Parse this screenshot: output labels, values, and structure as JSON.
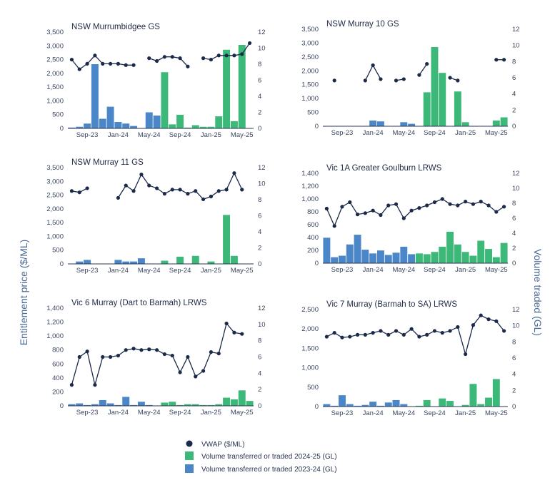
{
  "left_axis_label": "Entitlement price ($/ML)",
  "right_axis_label": "Volume traded (GL)",
  "colors": {
    "vwap": "#1b2a4a",
    "v2425": "#3cb878",
    "v2324": "#4a86c8",
    "axis": "#2a3450"
  },
  "x_ticks": [
    "Sep-23",
    "Jan-24",
    "May-24",
    "Sep-24",
    "Jan-25",
    "May-25"
  ],
  "legend": [
    {
      "label": "VWAP ($/ML)",
      "kind": "dot",
      "color": "#1b2a4a"
    },
    {
      "label": "Volume transferred or traded 2024-25 (GL)",
      "kind": "box",
      "color": "#3cb878"
    },
    {
      "label": "Volume transferred or traded 2023-24 (GL)",
      "kind": "box",
      "color": "#4a86c8"
    }
  ],
  "chart_data": [
    {
      "type": "bar",
      "title": "NSW Murrumbidgee GS",
      "x": [
        "Jul-23",
        "Aug-23",
        "Sep-23",
        "Oct-23",
        "Nov-23",
        "Dec-23",
        "Jan-24",
        "Feb-24",
        "Mar-24",
        "Apr-24",
        "May-24",
        "Jun-24",
        "Jul-24",
        "Aug-24",
        "Sep-24",
        "Oct-24",
        "Nov-24",
        "Dec-24",
        "Jan-25",
        "Feb-25",
        "Mar-25",
        "Apr-25",
        "May-25",
        "Jun-25"
      ],
      "y_left_ticks": [
        "0",
        "500",
        "1,000",
        "1,500",
        "2,000",
        "2,500",
        "3,000",
        "3,500"
      ],
      "y_right_ticks": [
        "0",
        "2",
        "4",
        "6",
        "8",
        "10",
        "12"
      ],
      "ylim_left": [
        0,
        3500
      ],
      "ylim_right": [
        0,
        12
      ],
      "volume_2023_24": [
        0.1,
        0.2,
        0.6,
        8.0,
        1.2,
        2.7,
        0.8,
        0.6,
        0.3,
        0,
        2.0,
        1.6,
        null,
        null,
        null,
        null,
        null,
        null,
        null,
        null,
        null,
        null,
        null,
        null
      ],
      "volume_2024_25": [
        null,
        null,
        null,
        null,
        null,
        null,
        null,
        null,
        null,
        null,
        null,
        null,
        7.0,
        0.5,
        1.7,
        0.1,
        0.4,
        0.2,
        0.2,
        1.5,
        9.8,
        0.9,
        10.4,
        null
      ],
      "vwap": [
        2500,
        2150,
        2350,
        2650,
        2350,
        2350,
        2350,
        2300,
        2300,
        null,
        2550,
        2450,
        2600,
        2600,
        2550,
        2250,
        null,
        2550,
        2500,
        2650,
        2650,
        2650,
        2700,
        3100
      ]
    },
    {
      "type": "bar",
      "title": "NSW Murray 10 GS",
      "x": [
        "Jul-23",
        "Aug-23",
        "Sep-23",
        "Oct-23",
        "Nov-23",
        "Dec-23",
        "Jan-24",
        "Feb-24",
        "Mar-24",
        "Apr-24",
        "May-24",
        "Jun-24",
        "Jul-24",
        "Aug-24",
        "Sep-24",
        "Oct-24",
        "Nov-24",
        "Dec-24",
        "Jan-25",
        "Feb-25",
        "Mar-25",
        "Apr-25",
        "May-25",
        "Jun-25"
      ],
      "y_left_ticks": [
        "0",
        "500",
        "1,000",
        "1,500",
        "2,000",
        "2,500",
        "3,000",
        "3,500"
      ],
      "y_right_ticks": [
        "0",
        "2",
        "4",
        "6",
        "8",
        "10",
        "12"
      ],
      "ylim_left": [
        0,
        3500
      ],
      "ylim_right": [
        0,
        12
      ],
      "volume_2023_24": [
        0,
        0,
        0,
        0,
        0,
        0,
        0.7,
        0.6,
        0,
        0,
        0.5,
        0.3,
        null,
        null,
        null,
        null,
        null,
        null,
        null,
        null,
        null,
        null,
        null,
        null
      ],
      "volume_2024_25": [
        null,
        null,
        null,
        null,
        null,
        null,
        null,
        null,
        null,
        null,
        null,
        null,
        0,
        4.2,
        9.8,
        6.6,
        0,
        4.3,
        0.5,
        0,
        0,
        0,
        0.7,
        1.1
      ],
      "vwap": [
        null,
        1650,
        null,
        null,
        null,
        1650,
        2200,
        1700,
        null,
        1650,
        1700,
        null,
        1850,
        2250,
        null,
        null,
        1750,
        1650,
        null,
        null,
        null,
        null,
        2400,
        2400
      ]
    },
    {
      "type": "bar",
      "title": "NSW Murray 11 GS",
      "x": [
        "Jul-23",
        "Aug-23",
        "Sep-23",
        "Oct-23",
        "Nov-23",
        "Dec-23",
        "Jan-24",
        "Feb-24",
        "Mar-24",
        "Apr-24",
        "May-24",
        "Jun-24",
        "Jul-24",
        "Aug-24",
        "Sep-24",
        "Oct-24",
        "Nov-24",
        "Dec-24",
        "Jan-25",
        "Feb-25",
        "Mar-25",
        "Apr-25",
        "May-25",
        "Jun-25"
      ],
      "y_left_ticks": [
        "0",
        "500",
        "1,000",
        "1,500",
        "2,000",
        "2,500",
        "3,000",
        "3,500"
      ],
      "y_right_ticks": [
        "0",
        "2",
        "4",
        "6",
        "8",
        "10",
        "12"
      ],
      "ylim_left": [
        0,
        3500
      ],
      "ylim_right": [
        0,
        12
      ],
      "volume_2023_24": [
        0,
        0.3,
        0.5,
        0,
        0,
        0,
        0.5,
        0.3,
        0.3,
        0.7,
        0,
        0,
        null,
        null,
        null,
        null,
        null,
        null,
        null,
        null,
        null,
        null,
        null,
        null
      ],
      "volume_2024_25": [
        null,
        null,
        null,
        null,
        null,
        null,
        null,
        null,
        null,
        null,
        null,
        null,
        0.4,
        0,
        0.9,
        0,
        1.0,
        0,
        0.3,
        0,
        6.1,
        1.0,
        null,
        null
      ],
      "vwap": [
        2650,
        2600,
        2750,
        null,
        null,
        null,
        2400,
        2850,
        2650,
        3250,
        2850,
        2750,
        2550,
        2700,
        2700,
        2550,
        2650,
        2350,
        2450,
        2650,
        2700,
        3300,
        2700,
        null
      ]
    },
    {
      "type": "bar",
      "title": "Vic 1A Greater Goulburn LRWS",
      "x": [
        "Jul-23",
        "Aug-23",
        "Sep-23",
        "Oct-23",
        "Nov-23",
        "Dec-23",
        "Jan-24",
        "Feb-24",
        "Mar-24",
        "Apr-24",
        "May-24",
        "Jun-24",
        "Jul-24",
        "Aug-24",
        "Sep-24",
        "Oct-24",
        "Nov-24",
        "Dec-24",
        "Jan-25",
        "Feb-25",
        "Mar-25",
        "Apr-25",
        "May-25",
        "Jun-25"
      ],
      "y_left_ticks": [
        "0",
        "200",
        "400",
        "600",
        "800",
        "1,000",
        "1,200",
        "1,400"
      ],
      "y_right_ticks": [
        "0",
        "2",
        "4",
        "6",
        "8",
        "10",
        "12"
      ],
      "ylim_left": [
        0,
        1400
      ],
      "ylim_right": [
        0,
        12
      ],
      "volume_2023_24": [
        3.4,
        0.8,
        1.0,
        2.5,
        3.8,
        1.8,
        1.3,
        1.7,
        1.1,
        1.4,
        2.2,
        1.2,
        null,
        null,
        null,
        null,
        null,
        null,
        null,
        null,
        null,
        null,
        null,
        null
      ],
      "volume_2024_25": [
        null,
        null,
        null,
        null,
        null,
        null,
        null,
        null,
        null,
        null,
        null,
        null,
        1.3,
        1.2,
        1.5,
        2.2,
        4.2,
        2.5,
        1.5,
        1.0,
        3.0,
        1.9,
        0.8,
        2.7
      ],
      "vwap": [
        850,
        580,
        880,
        950,
        760,
        780,
        820,
        750,
        900,
        920,
        700,
        820,
        860,
        900,
        950,
        1000,
        920,
        900,
        960,
        920,
        960,
        900,
        800,
        880
      ]
    },
    {
      "type": "bar",
      "title": "Vic 6 Murray (Dart to Barmah) LRWS",
      "x": [
        "Jul-23",
        "Aug-23",
        "Sep-23",
        "Oct-23",
        "Nov-23",
        "Dec-23",
        "Jan-24",
        "Feb-24",
        "Mar-24",
        "Apr-24",
        "May-24",
        "Jun-24",
        "Jul-24",
        "Aug-24",
        "Sep-24",
        "Oct-24",
        "Nov-24",
        "Dec-24",
        "Jan-25",
        "Feb-25",
        "Mar-25",
        "Apr-25",
        "May-25",
        "Jun-25"
      ],
      "y_left_ticks": [
        "0",
        "200",
        "400",
        "600",
        "800",
        "1,000",
        "1,200",
        "1,400"
      ],
      "y_right_ticks": [
        "0",
        "2",
        "4",
        "6",
        "8",
        "10",
        "12"
      ],
      "ylim_left": [
        0,
        1400
      ],
      "ylim_right": [
        0,
        12
      ],
      "volume_2023_24": [
        0.2,
        0.3,
        0.1,
        0.2,
        0.7,
        0.3,
        0.1,
        1.1,
        0.1,
        0.5,
        0.1,
        0,
        null,
        null,
        null,
        null,
        null,
        null,
        null,
        null,
        null,
        null,
        null,
        null
      ],
      "volume_2024_25": [
        null,
        null,
        null,
        null,
        null,
        null,
        null,
        null,
        null,
        null,
        null,
        null,
        0.4,
        0.5,
        0.1,
        0.2,
        0.2,
        0.1,
        0.1,
        0.2,
        1.0,
        0.8,
        1.9,
        0.6
      ],
      "vwap": [
        300,
        700,
        780,
        300,
        700,
        700,
        720,
        800,
        820,
        800,
        810,
        800,
        740,
        720,
        480,
        700,
        420,
        500,
        770,
        750,
        1180,
        1050,
        1030,
        null
      ]
    },
    {
      "type": "bar",
      "title": "Vic 7 Murray (Barmah to SA) LRWS",
      "x": [
        "Jul-23",
        "Aug-23",
        "Sep-23",
        "Oct-23",
        "Nov-23",
        "Dec-23",
        "Jan-24",
        "Feb-24",
        "Mar-24",
        "Apr-24",
        "May-24",
        "Jun-24",
        "Jul-24",
        "Aug-24",
        "Sep-24",
        "Oct-24",
        "Nov-24",
        "Dec-24",
        "Jan-25",
        "Feb-25",
        "Mar-25",
        "Apr-25",
        "May-25",
        "Jun-25"
      ],
      "y_left_ticks": [
        "0",
        "500",
        "1,000",
        "1,500",
        "2,000",
        "2,500"
      ],
      "y_right_ticks": [
        "0",
        "2",
        "4",
        "6",
        "8",
        "10",
        "12"
      ],
      "ylim_left": [
        0,
        2500
      ],
      "ylim_right": [
        0,
        12
      ],
      "volume_2023_24": [
        0.3,
        0.1,
        1.4,
        0.3,
        0.1,
        0.2,
        0.6,
        0.1,
        0.5,
        0.8,
        0.3,
        0,
        null,
        null,
        null,
        null,
        null,
        null,
        null,
        null,
        null,
        null,
        null,
        null
      ],
      "volume_2024_25": [
        null,
        null,
        null,
        null,
        null,
        null,
        null,
        null,
        null,
        null,
        null,
        null,
        0.1,
        0.8,
        0,
        1.0,
        0.7,
        0,
        0.2,
        2.8,
        0.3,
        1.1,
        3.4,
        null
      ],
      "vwap": [
        1800,
        1900,
        1780,
        1800,
        1850,
        1850,
        1900,
        1950,
        1850,
        1950,
        1850,
        2000,
        1800,
        1850,
        1950,
        1900,
        1950,
        2050,
        1350,
        2100,
        2350,
        2250,
        2200,
        1950
      ]
    }
  ]
}
